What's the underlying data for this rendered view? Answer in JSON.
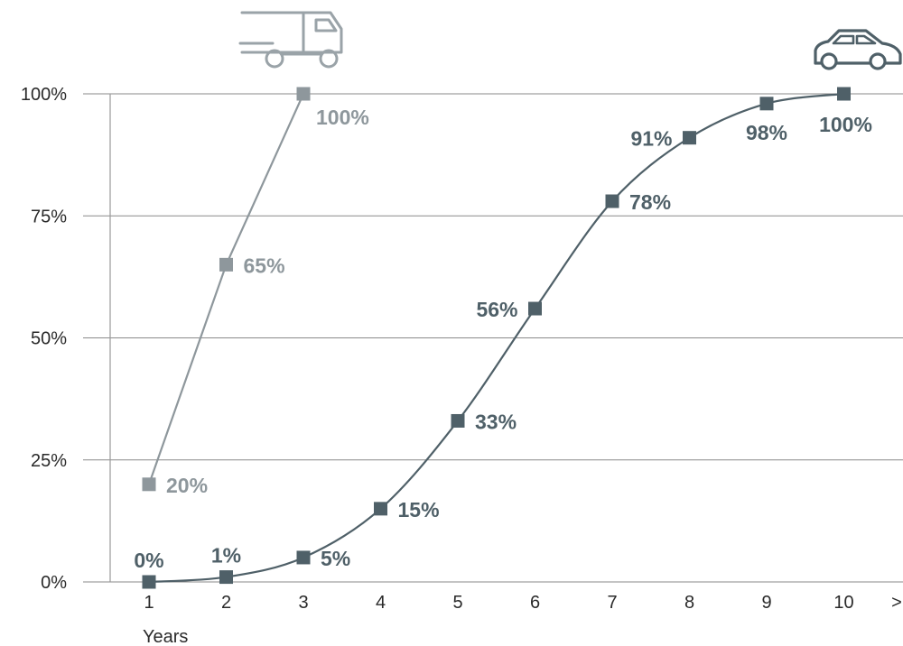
{
  "chart_data": {
    "type": "line",
    "title": "",
    "xlabel": "Years",
    "ylabel": "",
    "x": [
      1,
      2,
      3,
      4,
      5,
      6,
      7,
      8,
      9,
      10
    ],
    "x_tick_labels": [
      "1",
      "2",
      "3",
      "4",
      "5",
      "6",
      "7",
      "8",
      "9",
      "10"
    ],
    "x_axis_end_marker": ">",
    "y_tick_labels": [
      "0%",
      "25%",
      "50%",
      "75%",
      "100%"
    ],
    "y_ticks": [
      0,
      25,
      50,
      75,
      100
    ],
    "ylim": [
      0,
      100
    ],
    "xlim": [
      0.5,
      10.5
    ],
    "grid": "horizontal",
    "series": [
      {
        "icon": "truck-icon",
        "color": "#8e979c",
        "x": [
          1,
          2,
          3
        ],
        "values": [
          20,
          65,
          100
        ],
        "labels": [
          "20%",
          "65%",
          "100%"
        ],
        "label_side": [
          "right",
          "right",
          "right"
        ]
      },
      {
        "icon": "car-icon",
        "color": "#4f6068",
        "x": [
          1,
          2,
          3,
          4,
          5,
          6,
          7,
          8,
          9,
          10
        ],
        "values": [
          0,
          1,
          5,
          15,
          33,
          56,
          78,
          91,
          98,
          100
        ],
        "labels": [
          "0%",
          "1%",
          "5%",
          "15%",
          "33%",
          "56%",
          "78%",
          "91%",
          "98%",
          "100%"
        ],
        "label_side": [
          "above",
          "above",
          "right",
          "right",
          "right",
          "left",
          "right",
          "left",
          "below-left",
          "below"
        ]
      }
    ]
  }
}
